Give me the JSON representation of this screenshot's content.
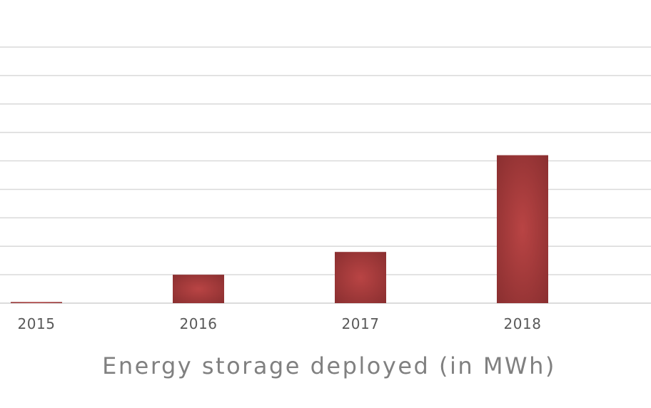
{
  "chart_data": {
    "type": "bar",
    "categories": [
      "2015",
      "2016",
      "2017",
      "2018"
    ],
    "values": [
      2,
      50,
      90,
      260
    ],
    "caption": "Energy storage deployed (in MWh)",
    "ylim": [
      0,
      450
    ],
    "grid": true,
    "bar_color": "#a93a3a",
    "bar_color_dark": "#8a2f30"
  }
}
